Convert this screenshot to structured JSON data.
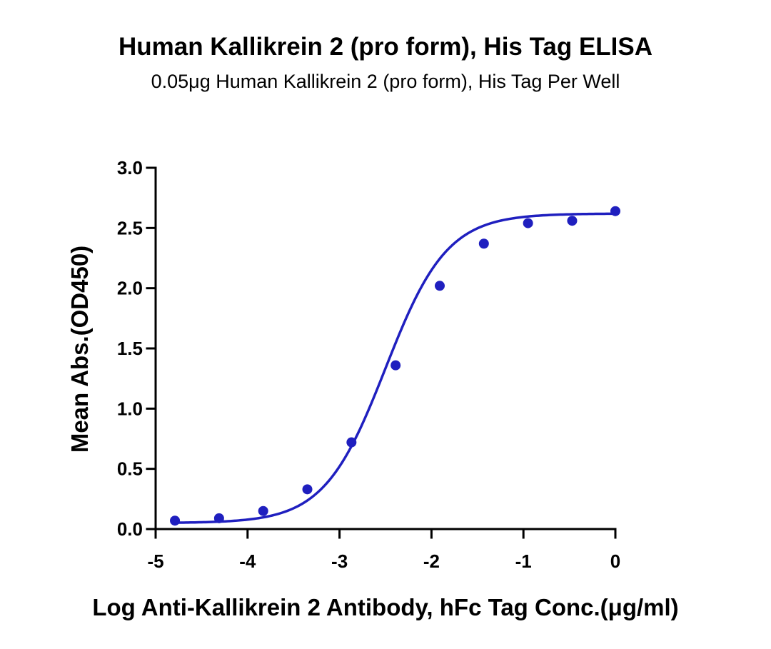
{
  "chart_data": {
    "type": "scatter",
    "title": "Human Kallikrein 2 (pro form), His Tag ELISA",
    "subtitle": "0.05μg Human Kallikrein 2 (pro form), His Tag Per Well",
    "xlabel": "Log Anti-Kallikrein 2 Antibody, hFc Tag Conc.(μg/ml)",
    "ylabel": "Mean Abs.(OD450)",
    "xlim": [
      -5,
      0
    ],
    "ylim": [
      0,
      3
    ],
    "xticks": [
      "-5",
      "-4",
      "-3",
      "-2",
      "-1",
      "0"
    ],
    "yticks": [
      "0.0",
      "0.5",
      "1.0",
      "1.5",
      "2.0",
      "2.5",
      "3.0"
    ],
    "grid": false,
    "legend": "none",
    "color": "#1f1fbf",
    "series": [
      {
        "x": [
          -4.79,
          -4.31,
          -3.83,
          -3.35,
          -2.87,
          -2.39,
          -1.91,
          -1.43,
          -0.95,
          -0.47,
          0.0
        ],
        "y": [
          0.07,
          0.09,
          0.15,
          0.33,
          0.72,
          1.36,
          2.02,
          2.37,
          2.54,
          2.56,
          2.64
        ]
      }
    ],
    "fit": {
      "type": "4PL",
      "bottom": 0.05,
      "top": 2.62,
      "logEC50": -2.5,
      "hillslope": 1.3
    }
  }
}
